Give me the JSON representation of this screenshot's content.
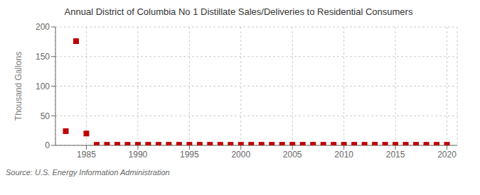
{
  "chart_data": {
    "type": "scatter",
    "title": "Annual District of Columbia No 1 Distillate Sales/Deliveries to Residential Consumers",
    "ylabel": "Thousand Gallons",
    "source": "Source: U.S. Energy Information Administration",
    "x": [
      1983,
      1984,
      1985,
      1986,
      1987,
      1988,
      1989,
      1990,
      1991,
      1992,
      1993,
      1994,
      1995,
      1996,
      1997,
      1998,
      1999,
      2000,
      2001,
      2002,
      2003,
      2004,
      2005,
      2006,
      2007,
      2008,
      2009,
      2010,
      2011,
      2012,
      2013,
      2014,
      2015,
      2016,
      2017,
      2018,
      2019,
      2020
    ],
    "values": [
      24,
      176,
      20,
      1,
      1,
      1,
      1,
      1,
      1,
      1,
      1,
      1,
      1,
      1,
      1,
      1,
      1,
      1,
      1,
      1,
      1,
      1,
      1,
      1,
      1,
      1,
      1,
      1,
      1,
      1,
      1,
      1,
      1,
      1,
      1,
      1,
      1,
      1
    ],
    "color": "#bb0000",
    "marker": "square",
    "xlim": [
      1982,
      2021
    ],
    "xticks": [
      1985,
      1990,
      1995,
      2000,
      2005,
      2010,
      2015,
      2020
    ],
    "ylim": [
      0,
      200
    ],
    "yticks": [
      0,
      50,
      100,
      150,
      200
    ],
    "grid": true
  }
}
